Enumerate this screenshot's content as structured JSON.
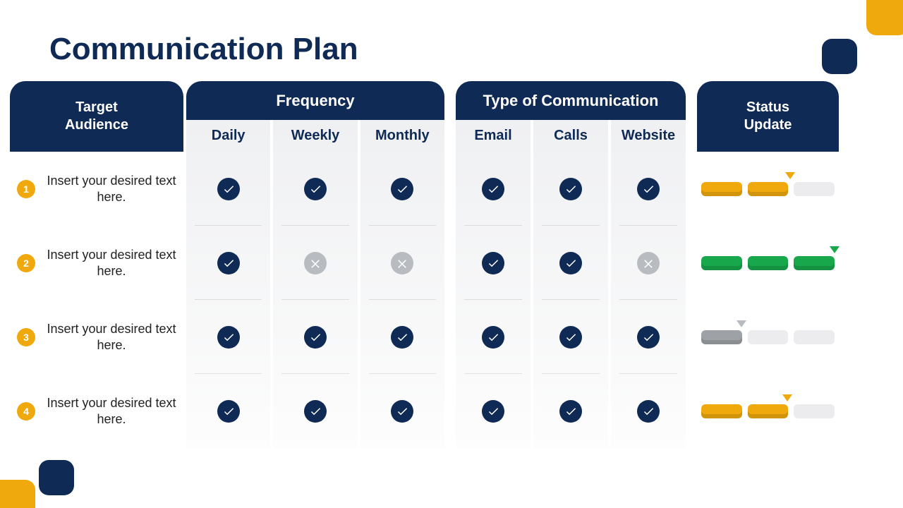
{
  "title": "Communication Plan",
  "colors": {
    "navy": "#0e2a55",
    "amber": "#f0a90c",
    "green": "#18a74a",
    "grey": "#b8bcc1",
    "grey_dark": "#9ea2a6",
    "seg_empty": "#ececee",
    "text": "#172138",
    "white": "#ffffff",
    "title_fontsize": 44
  },
  "decor": {
    "top_right": "#f0a90c",
    "top_square": "#0e2a55",
    "bottom_left": "#f0a90c",
    "bottom_square": "#0e2a55"
  },
  "headers": {
    "target_audience": "Target Audience",
    "frequency": "Frequency",
    "type": "Type of Communication",
    "status": "Status Update"
  },
  "subheaders": {
    "frequency": [
      "Daily",
      "Weekly",
      "Monthly"
    ],
    "type": [
      "Email",
      "Calls",
      "Website"
    ]
  },
  "rows": [
    {
      "num": "1",
      "text": "Insert your desired text here.",
      "frequency": [
        "check",
        "check",
        "check"
      ],
      "type": [
        "check",
        "check",
        "check"
      ],
      "status": {
        "segments": [
          "amber",
          "amber",
          "empty"
        ],
        "marker_pct": 66,
        "marker_color": "#f0a90c"
      }
    },
    {
      "num": "2",
      "text": "Insert your desired text here.",
      "frequency": [
        "check",
        "cross",
        "cross"
      ],
      "type": [
        "check",
        "check",
        "cross"
      ],
      "status": {
        "segments": [
          "green",
          "green",
          "green"
        ],
        "marker_pct": 98,
        "marker_color": "#18a74a"
      }
    },
    {
      "num": "3",
      "text": "Insert your desired text here.",
      "frequency": [
        "check",
        "check",
        "check"
      ],
      "type": [
        "check",
        "check",
        "check"
      ],
      "status": {
        "segments": [
          "grey",
          "empty",
          "empty"
        ],
        "marker_pct": 31,
        "marker_color": "#b8bcc1"
      }
    },
    {
      "num": "4",
      "text": "Insert your desired text here.",
      "frequency": [
        "check",
        "check",
        "check"
      ],
      "type": [
        "check",
        "check",
        "check"
      ],
      "status": {
        "segments": [
          "amber",
          "amber",
          "empty"
        ],
        "marker_pct": 64,
        "marker_color": "#f0a90c"
      }
    }
  ]
}
